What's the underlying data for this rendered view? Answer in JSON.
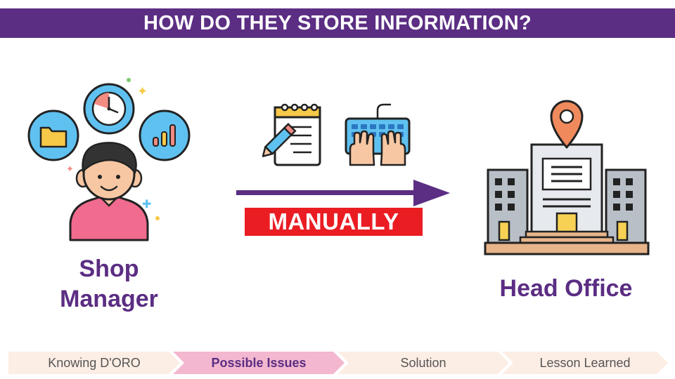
{
  "header": {
    "title": "HOW DO THEY STORE INFORMATION?"
  },
  "shop_manager": {
    "label_line1": "Shop",
    "label_line2": "Manager"
  },
  "head_office": {
    "label": "Head Office"
  },
  "method": {
    "label": "MANUALLY"
  },
  "steps": [
    {
      "label": "Knowing D'ORO",
      "active": false
    },
    {
      "label": "Possible Issues",
      "active": true
    },
    {
      "label": "Solution",
      "active": false
    },
    {
      "label": "Lesson Learned",
      "active": false
    }
  ],
  "colors": {
    "brand_purple": "#5b2d83",
    "manual_red": "#ea1d23",
    "step_inactive": "#fdeee5",
    "step_active": "#f3b7cf"
  },
  "icons": [
    "folder-icon",
    "clock-icon",
    "bar-chart-icon",
    "person-icon",
    "notepad-pencil-icon",
    "keyboard-hands-icon",
    "location-pin-icon",
    "building-icon",
    "arrow-right-icon"
  ]
}
